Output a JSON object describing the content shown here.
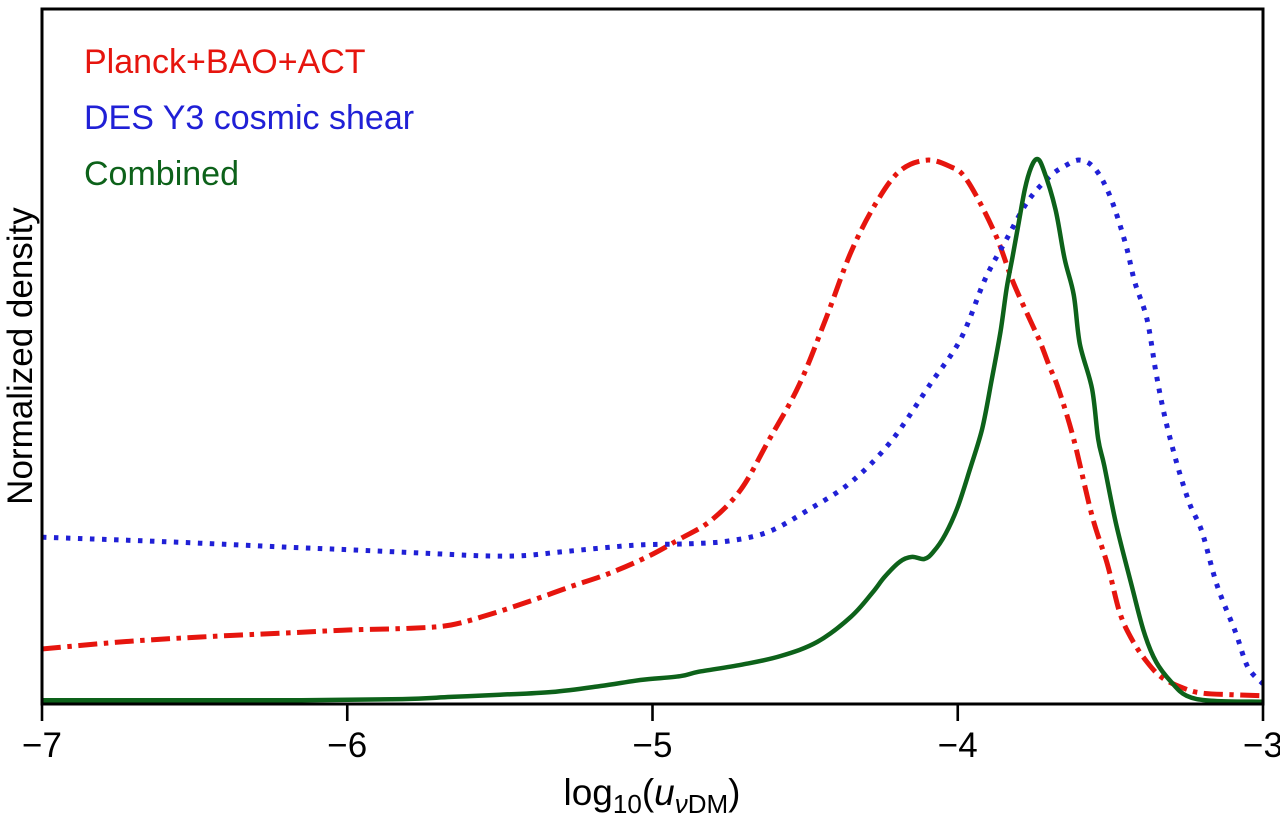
{
  "figure": {
    "background": "#ffffff",
    "frame_color": "#000000",
    "text_color": "#000000"
  },
  "legend": {
    "items": [
      {
        "label": "Planck+BAO+ACT",
        "color": "#e6150e",
        "linestyle": "dashdot"
      },
      {
        "label": "DES Y3 cosmic shear",
        "color": "#2020d6",
        "linestyle": "dotted"
      },
      {
        "label": "Combined",
        "color": "#0d621a",
        "linestyle": "solid"
      }
    ]
  },
  "axes": {
    "ylabel": "Normalized density",
    "xlabel": "log10(u_vDM)",
    "xlabel_parts": {
      "func": "log",
      "func_sub": "10",
      "open_paren": "(",
      "variable": "u",
      "var_sub_greek": "ν",
      "var_sub_text": "DM",
      "close_paren": ")"
    },
    "x_ticks": [
      -7,
      -6,
      -5,
      -4,
      -3
    ],
    "x_tick_labels": [
      "−7",
      "−6",
      "−5",
      "−4",
      "−3"
    ],
    "xlim": [
      -7,
      -3
    ],
    "ylim": [
      0,
      1.275
    ],
    "y_ticks_shown": false
  },
  "chart_data": {
    "type": "line",
    "title": "",
    "xlabel": "log10(u_vDM)",
    "ylabel": "Normalized density",
    "xlim": [
      -7,
      -3
    ],
    "ylim": [
      0,
      1.275
    ],
    "grid": false,
    "legend_position": "upper-left colored text",
    "series": [
      {
        "name": "Planck+BAO+ACT",
        "color": "#e6150e",
        "linestyle": "dashdot",
        "x": [
          -7.0,
          -6.74,
          -6.48,
          -6.21,
          -5.99,
          -5.79,
          -5.66,
          -5.53,
          -5.4,
          -5.27,
          -5.14,
          -5.01,
          -4.91,
          -4.81,
          -4.71,
          -4.62,
          -4.52,
          -4.43,
          -4.35,
          -4.27,
          -4.19,
          -4.1,
          -4.02,
          -3.98,
          -3.93,
          -3.87,
          -3.82,
          -3.76,
          -3.73,
          -3.7,
          -3.67,
          -3.62,
          -3.56,
          -3.51,
          -3.47,
          -3.43,
          -3.38,
          -3.33,
          -3.26,
          -3.2,
          -3.1,
          -3.0
        ],
        "y": [
          0.101,
          0.114,
          0.123,
          0.13,
          0.136,
          0.139,
          0.145,
          0.165,
          0.189,
          0.215,
          0.24,
          0.272,
          0.303,
          0.336,
          0.394,
          0.483,
          0.585,
          0.71,
          0.829,
          0.917,
          0.978,
          0.998,
          0.985,
          0.969,
          0.923,
          0.853,
          0.776,
          0.701,
          0.664,
          0.62,
          0.578,
          0.486,
          0.345,
          0.257,
          0.169,
          0.119,
          0.077,
          0.048,
          0.029,
          0.02,
          0.017,
          0.015
        ]
      },
      {
        "name": "DES Y3 cosmic shear",
        "color": "#2020d6",
        "linestyle": "dotted",
        "x": [
          -7.0,
          -6.74,
          -6.48,
          -6.21,
          -5.99,
          -5.76,
          -5.56,
          -5.43,
          -5.3,
          -5.17,
          -5.04,
          -4.88,
          -4.75,
          -4.62,
          -4.49,
          -4.35,
          -4.22,
          -4.09,
          -3.99,
          -3.91,
          -3.84,
          -3.77,
          -3.7,
          -3.65,
          -3.6,
          -3.55,
          -3.5,
          -3.45,
          -3.42,
          -3.38,
          -3.35,
          -3.32,
          -3.28,
          -3.24,
          -3.2,
          -3.15,
          -3.09,
          -3.05,
          -3.0
        ],
        "y": [
          0.306,
          0.301,
          0.295,
          0.288,
          0.283,
          0.277,
          0.272,
          0.272,
          0.279,
          0.286,
          0.292,
          0.294,
          0.299,
          0.316,
          0.356,
          0.407,
          0.481,
          0.587,
          0.67,
          0.78,
          0.853,
          0.923,
          0.967,
          0.987,
          0.998,
          0.982,
          0.93,
          0.844,
          0.774,
          0.706,
          0.606,
          0.523,
          0.437,
          0.367,
          0.316,
          0.217,
          0.132,
          0.068,
          0.037
        ]
      },
      {
        "name": "Combined",
        "color": "#0d621a",
        "linestyle": "solid",
        "x": [
          -7.0,
          -6.64,
          -6.15,
          -5.82,
          -5.66,
          -5.5,
          -5.33,
          -5.17,
          -5.04,
          -4.91,
          -4.85,
          -4.71,
          -4.58,
          -4.46,
          -4.35,
          -4.28,
          -4.24,
          -4.19,
          -4.15,
          -4.11,
          -4.08,
          -4.04,
          -4.0,
          -3.96,
          -3.92,
          -3.89,
          -3.86,
          -3.84,
          -3.82,
          -3.8,
          -3.78,
          -3.76,
          -3.74,
          -3.72,
          -3.68,
          -3.65,
          -3.62,
          -3.6,
          -3.56,
          -3.54,
          -3.52,
          -3.48,
          -3.43,
          -3.39,
          -3.35,
          -3.3,
          -3.25,
          -3.17,
          -3.0
        ],
        "y": [
          0.007,
          0.007,
          0.007,
          0.009,
          0.013,
          0.017,
          0.022,
          0.033,
          0.044,
          0.051,
          0.059,
          0.072,
          0.088,
          0.114,
          0.16,
          0.204,
          0.233,
          0.261,
          0.27,
          0.266,
          0.279,
          0.312,
          0.362,
          0.431,
          0.505,
          0.591,
          0.683,
          0.762,
          0.822,
          0.884,
          0.945,
          0.984,
          1.0,
          0.982,
          0.908,
          0.817,
          0.751,
          0.661,
          0.578,
          0.486,
          0.437,
          0.327,
          0.217,
          0.132,
          0.077,
          0.04,
          0.015,
          0.006,
          0.004
        ]
      }
    ]
  }
}
